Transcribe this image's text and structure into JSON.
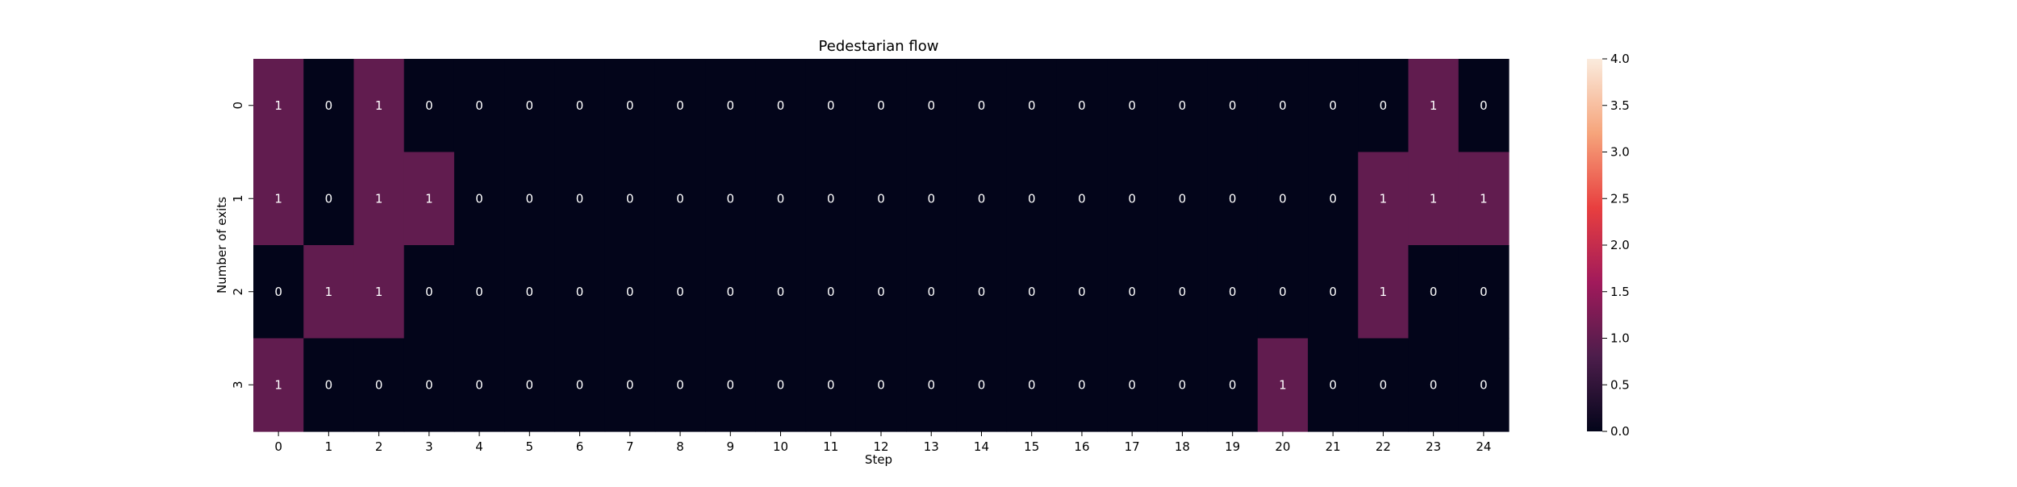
{
  "chart_data": {
    "type": "heatmap",
    "title": "Pedestarian flow",
    "xlabel": "Step",
    "ylabel": "Number of exits",
    "x_categories": [
      "0",
      "1",
      "2",
      "3",
      "4",
      "5",
      "6",
      "7",
      "8",
      "9",
      "10",
      "11",
      "12",
      "13",
      "14",
      "15",
      "16",
      "17",
      "18",
      "19",
      "20",
      "21",
      "22",
      "23",
      "24"
    ],
    "y_categories": [
      "0",
      "1",
      "2",
      "3"
    ],
    "values": [
      [
        1,
        0,
        1,
        0,
        0,
        0,
        0,
        0,
        0,
        0,
        0,
        0,
        0,
        0,
        0,
        0,
        0,
        0,
        0,
        0,
        0,
        0,
        0,
        1,
        0
      ],
      [
        1,
        0,
        1,
        1,
        0,
        0,
        0,
        0,
        0,
        0,
        0,
        0,
        0,
        0,
        0,
        0,
        0,
        0,
        0,
        0,
        0,
        0,
        1,
        1,
        1
      ],
      [
        0,
        1,
        1,
        0,
        0,
        0,
        0,
        0,
        0,
        0,
        0,
        0,
        0,
        0,
        0,
        0,
        0,
        0,
        0,
        0,
        0,
        0,
        1,
        0,
        0
      ],
      [
        1,
        0,
        0,
        0,
        0,
        0,
        0,
        0,
        0,
        0,
        0,
        0,
        0,
        0,
        0,
        0,
        0,
        0,
        0,
        0,
        1,
        0,
        0,
        0,
        0
      ]
    ],
    "annotations": true,
    "colorbar": {
      "range": [
        0.0,
        4.0
      ],
      "ticks": [
        "0.0",
        "0.5",
        "1.0",
        "1.5",
        "2.0",
        "2.5",
        "3.0",
        "3.5",
        "4.0"
      ],
      "colormap": "rocket",
      "stops": [
        "#03051a",
        "#4c1d4b",
        "#a11a5b",
        "#e83f3f",
        "#f6a47b",
        "#faebdd"
      ]
    },
    "annotation_text_color": "#ffffff"
  }
}
